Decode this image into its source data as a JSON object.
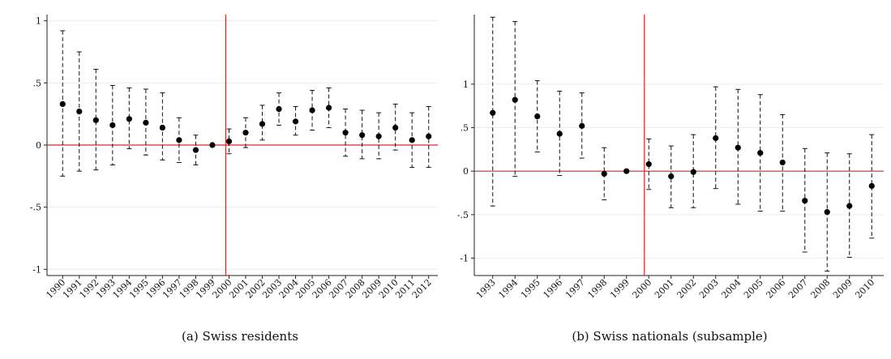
{
  "chart_data": [
    {
      "type": "scatter",
      "caption": "(a) Swiss residents",
      "ylim": [
        -1.05,
        1.05
      ],
      "yticks": [
        1,
        0.5,
        0,
        -0.5,
        -1
      ],
      "ytick_labels": [
        "1",
        ".5",
        "0",
        "-.5",
        "-1"
      ],
      "ref_line_y": 0,
      "ref_line_x": 1999.8,
      "grid": true,
      "categories": [
        "1990",
        "1991",
        "1992",
        "1993",
        "1994",
        "1995",
        "1996",
        "1997",
        "1998",
        "1999",
        "2000",
        "2001",
        "2002",
        "2003",
        "2004",
        "2005",
        "2006",
        "2007",
        "2008",
        "2009",
        "2010",
        "2011",
        "2012"
      ],
      "series": [
        {
          "estimate": [
            0.33,
            0.27,
            0.2,
            0.16,
            0.21,
            0.18,
            0.14,
            0.04,
            -0.04,
            0.0,
            0.03,
            0.1,
            0.17,
            0.29,
            0.19,
            0.28,
            0.3,
            0.1,
            0.08,
            0.07,
            0.14,
            0.04,
            0.07
          ],
          "ci_low": [
            -0.25,
            -0.21,
            -0.2,
            -0.16,
            -0.03,
            -0.08,
            -0.12,
            -0.14,
            -0.16,
            0.0,
            -0.07,
            -0.02,
            0.04,
            0.16,
            0.08,
            0.12,
            0.14,
            -0.09,
            -0.11,
            -0.11,
            -0.04,
            -0.18,
            -0.18
          ],
          "ci_high": [
            0.92,
            0.75,
            0.61,
            0.48,
            0.46,
            0.45,
            0.42,
            0.22,
            0.08,
            0.0,
            0.13,
            0.22,
            0.32,
            0.42,
            0.31,
            0.44,
            0.46,
            0.29,
            0.28,
            0.26,
            0.33,
            0.26,
            0.31
          ]
        }
      ]
    },
    {
      "type": "scatter",
      "caption": "(b) Swiss nationals (subsample)",
      "ylim": [
        -1.2,
        1.8
      ],
      "yticks": [
        1,
        0.5,
        0,
        -0.5,
        -1
      ],
      "ytick_labels": [
        "1",
        ".5",
        "0",
        "-.5",
        "-1"
      ],
      "ref_line_y": 0,
      "ref_line_x": 1999.8,
      "grid": true,
      "categories": [
        "1993",
        "1994",
        "1995",
        "1996",
        "1997",
        "1998",
        "1999",
        "2000",
        "2001",
        "2002",
        "2003",
        "2004",
        "2005",
        "2006",
        "2007",
        "2008",
        "2009",
        "2010"
      ],
      "series": [
        {
          "estimate": [
            0.67,
            0.82,
            0.63,
            0.43,
            0.52,
            -0.03,
            0.0,
            0.08,
            -0.06,
            -0.01,
            0.38,
            0.27,
            0.21,
            0.1,
            -0.34,
            -0.47,
            -0.4,
            -0.17
          ],
          "ci_low": [
            -0.4,
            -0.06,
            0.22,
            -0.05,
            0.15,
            -0.33,
            0.0,
            -0.21,
            -0.42,
            -0.42,
            -0.2,
            -0.38,
            -0.46,
            -0.46,
            -0.93,
            -1.15,
            -0.99,
            -0.77
          ],
          "ci_high": [
            1.77,
            1.72,
            1.04,
            0.92,
            0.9,
            0.27,
            0.0,
            0.37,
            0.29,
            0.42,
            0.97,
            0.94,
            0.88,
            0.65,
            0.26,
            0.21,
            0.2,
            0.42
          ]
        }
      ]
    }
  ]
}
